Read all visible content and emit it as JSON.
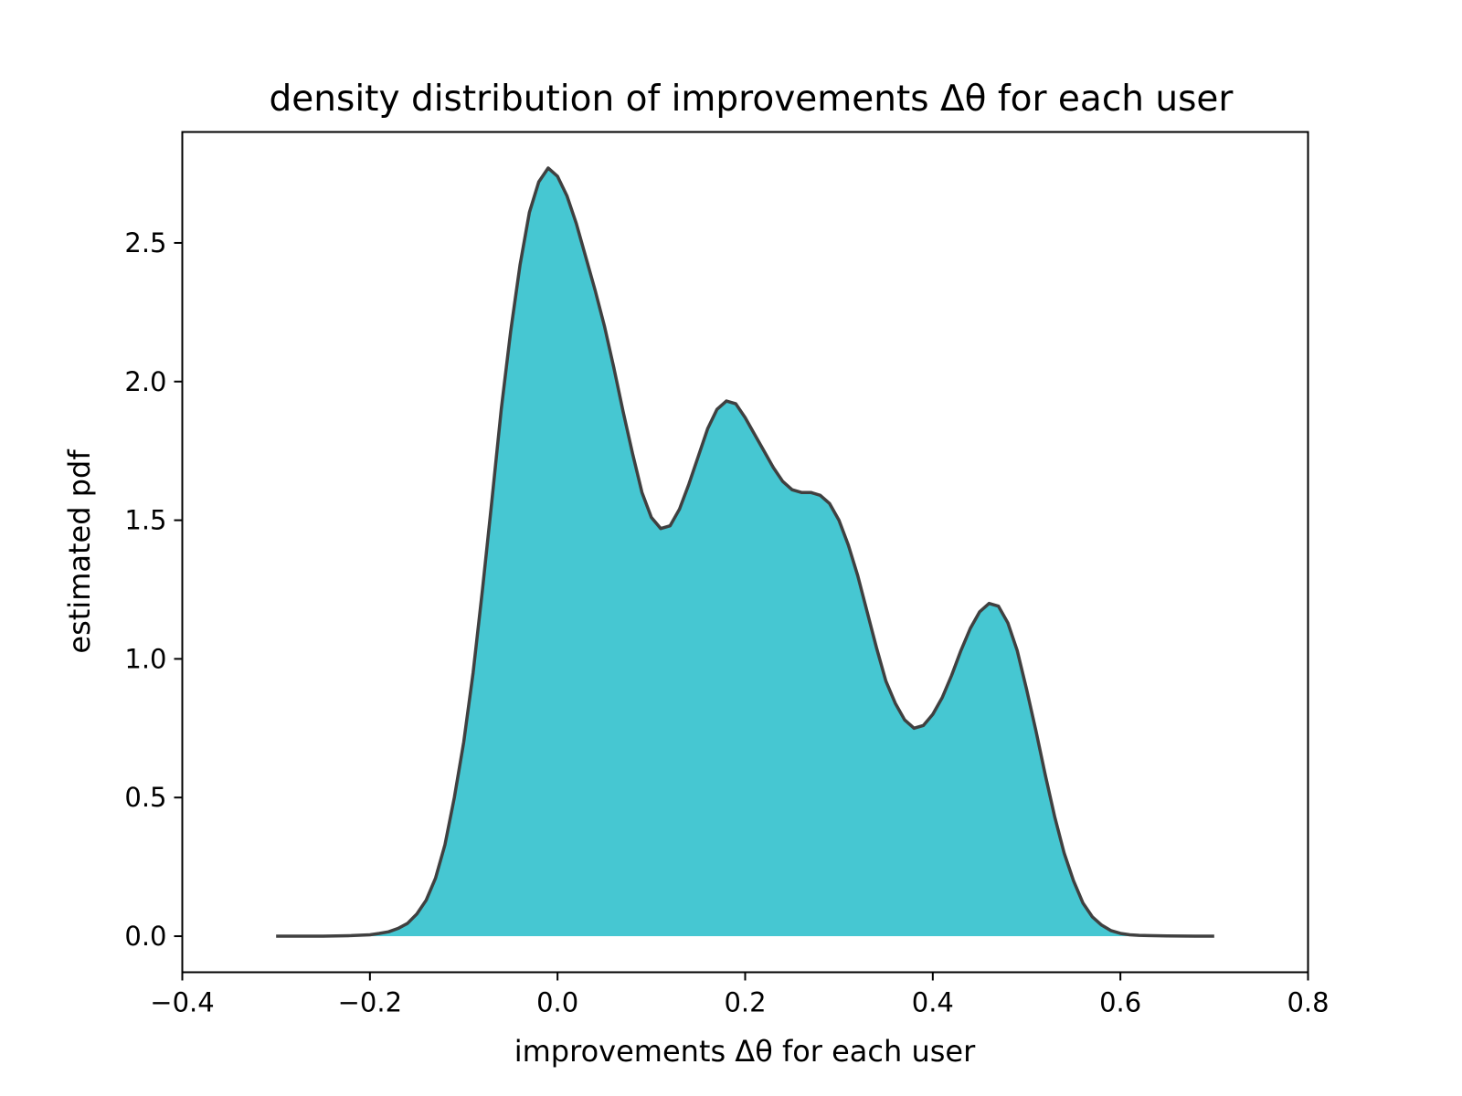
{
  "chart_data": {
    "type": "area",
    "title": "density distribution of improvements Δθ for each user",
    "xlabel": "improvements Δθ for each user",
    "ylabel": "estimated pdf",
    "xlim": [
      -0.4,
      0.8
    ],
    "ylim": [
      -0.13,
      2.9
    ],
    "xticks": [
      -0.4,
      -0.2,
      0.0,
      0.2,
      0.4,
      0.6,
      0.8
    ],
    "xtick_labels": [
      "−0.4",
      "−0.2",
      "0.0",
      "0.2",
      "0.4",
      "0.6",
      "0.8"
    ],
    "yticks": [
      0.0,
      0.5,
      1.0,
      1.5,
      2.0,
      2.5
    ],
    "ytick_labels": [
      "0.0",
      "0.5",
      "1.0",
      "1.5",
      "2.0",
      "2.5"
    ],
    "grid": false,
    "legend": "none",
    "fill_color": "#46c7d2",
    "line_color": "#404040",
    "series": [
      {
        "x": [
          -0.3,
          -0.25,
          -0.22,
          -0.2,
          -0.19,
          -0.18,
          -0.17,
          -0.16,
          -0.15,
          -0.14,
          -0.13,
          -0.12,
          -0.11,
          -0.1,
          -0.09,
          -0.08,
          -0.07,
          -0.06,
          -0.05,
          -0.04,
          -0.03,
          -0.02,
          -0.01,
          0.0,
          0.01,
          0.02,
          0.03,
          0.04,
          0.05,
          0.06,
          0.07,
          0.08,
          0.09,
          0.1,
          0.11,
          0.12,
          0.13,
          0.14,
          0.15,
          0.16,
          0.17,
          0.18,
          0.19,
          0.2,
          0.21,
          0.22,
          0.23,
          0.24,
          0.25,
          0.26,
          0.27,
          0.28,
          0.29,
          0.3,
          0.31,
          0.32,
          0.33,
          0.34,
          0.35,
          0.36,
          0.37,
          0.38,
          0.39,
          0.4,
          0.41,
          0.42,
          0.43,
          0.44,
          0.45,
          0.46,
          0.47,
          0.48,
          0.49,
          0.5,
          0.51,
          0.52,
          0.53,
          0.54,
          0.55,
          0.56,
          0.57,
          0.58,
          0.59,
          0.6,
          0.61,
          0.62,
          0.63,
          0.65,
          0.68,
          0.7
        ],
        "y": [
          0.0,
          0.0,
          0.002,
          0.005,
          0.01,
          0.016,
          0.028,
          0.046,
          0.08,
          0.13,
          0.21,
          0.33,
          0.5,
          0.7,
          0.95,
          1.25,
          1.57,
          1.9,
          2.18,
          2.42,
          2.61,
          2.72,
          2.77,
          2.74,
          2.67,
          2.57,
          2.45,
          2.33,
          2.2,
          2.05,
          1.89,
          1.74,
          1.6,
          1.51,
          1.47,
          1.48,
          1.54,
          1.63,
          1.73,
          1.83,
          1.9,
          1.93,
          1.92,
          1.87,
          1.81,
          1.75,
          1.69,
          1.64,
          1.61,
          1.6,
          1.6,
          1.59,
          1.56,
          1.5,
          1.41,
          1.3,
          1.17,
          1.04,
          0.92,
          0.84,
          0.78,
          0.75,
          0.76,
          0.8,
          0.86,
          0.94,
          1.03,
          1.11,
          1.17,
          1.2,
          1.19,
          1.13,
          1.03,
          0.89,
          0.74,
          0.58,
          0.43,
          0.3,
          0.2,
          0.12,
          0.07,
          0.04,
          0.02,
          0.01,
          0.005,
          0.003,
          0.002,
          0.001,
          0.0,
          0.0
        ]
      }
    ]
  }
}
